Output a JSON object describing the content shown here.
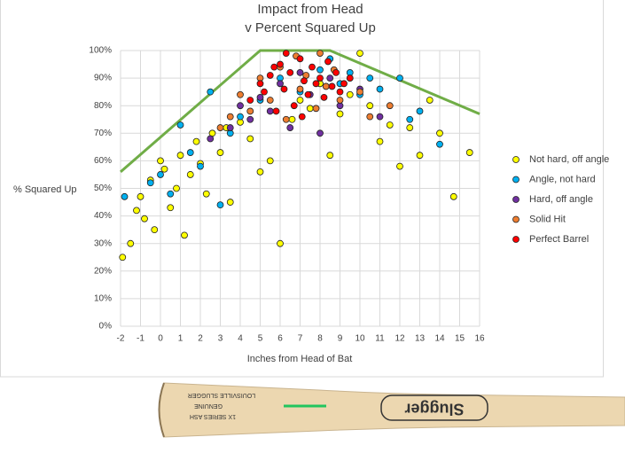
{
  "chart_data": {
    "type": "scatter",
    "title": "Impact from Head",
    "subtitle": "v Percent Squared Up",
    "x_label": "Inches from Head of Bat",
    "y_label": "% Squared Up",
    "xlim": [
      -2,
      16
    ],
    "ylim": [
      0,
      100
    ],
    "xticks": [
      -2,
      -1,
      0,
      1,
      2,
      3,
      4,
      5,
      6,
      7,
      8,
      9,
      10,
      11,
      12,
      13,
      14,
      15,
      16
    ],
    "yticks": [
      {
        "value": 0,
        "label": "0%"
      },
      {
        "value": 10,
        "label": "10%"
      },
      {
        "value": 20,
        "label": "20%"
      },
      {
        "value": 30,
        "label": "30%"
      },
      {
        "value": 40,
        "label": "40%"
      },
      {
        "value": 50,
        "label": "50%"
      },
      {
        "value": 60,
        "label": "60%"
      },
      {
        "value": 70,
        "label": "70%"
      },
      {
        "value": 80,
        "label": "80%"
      },
      {
        "value": 90,
        "label": "90%"
      },
      {
        "value": 100,
        "label": "100%"
      }
    ],
    "grid": true,
    "legend": "right",
    "envelope": {
      "color": "#70ad47",
      "x": [
        -2,
        5,
        8.5,
        16
      ],
      "y": [
        56,
        100,
        100,
        77
      ]
    },
    "series": [
      {
        "name": "Not hard, off angle",
        "color": "#ffff00",
        "x": [
          -1.9,
          -1.5,
          -1.2,
          -1,
          -0.8,
          -0.5,
          -0.3,
          0,
          0.2,
          0.5,
          0.8,
          1,
          1.2,
          1.5,
          1.8,
          2,
          2.3,
          2.6,
          3,
          3.3,
          3.5,
          4,
          4.5,
          5,
          5.5,
          6,
          6.6,
          7,
          7.5,
          8,
          8.5,
          9,
          9.5,
          10,
          10.5,
          11,
          11.5,
          12,
          12.5,
          13,
          13.5,
          14,
          14.7,
          15.5
        ],
        "values": [
          25,
          30,
          42,
          47,
          39,
          53,
          35,
          60,
          57,
          43,
          50,
          62,
          33,
          55,
          67,
          59,
          48,
          70,
          63,
          72,
          45,
          74,
          68,
          56,
          60,
          30,
          75,
          82,
          79,
          88,
          62,
          77,
          84,
          99,
          80,
          67,
          73,
          58,
          72,
          62,
          82,
          70,
          47,
          63
        ]
      },
      {
        "name": "Angle, not hard",
        "color": "#00b0f0",
        "x": [
          -1.8,
          -0.5,
          0,
          0.5,
          1,
          1.5,
          2,
          2.5,
          3,
          3.5,
          4,
          5,
          6,
          7,
          8,
          8.5,
          9,
          9.5,
          10,
          10.5,
          11,
          12,
          12.5,
          13,
          14
        ],
        "values": [
          47,
          52,
          55,
          48,
          73,
          63,
          58,
          85,
          44,
          70,
          76,
          82,
          90,
          85,
          93,
          97,
          88,
          92,
          84,
          90,
          86,
          90,
          75,
          78,
          66
        ]
      },
      {
        "name": "Hard, off angle",
        "color": "#7030a0",
        "x": [
          2.5,
          3.5,
          4,
          4.5,
          5,
          5.5,
          6,
          6.5,
          7,
          7.5,
          8,
          8.5,
          9,
          10,
          11
        ],
        "values": [
          68,
          72,
          80,
          75,
          83,
          78,
          88,
          72,
          92,
          84,
          70,
          90,
          80,
          86,
          76
        ]
      },
      {
        "name": "Solid Hit",
        "color": "#ed7d31",
        "x": [
          3,
          3.5,
          4,
          4.5,
          5,
          5.5,
          6,
          6.3,
          6.8,
          7,
          7.3,
          7.8,
          8,
          8.3,
          8.7,
          9,
          9.5,
          10,
          10.5,
          11.5
        ],
        "values": [
          72,
          76,
          84,
          78,
          90,
          82,
          94,
          75,
          98,
          86,
          91,
          79,
          99,
          87,
          93,
          82,
          90,
          85,
          76,
          80
        ]
      },
      {
        "name": "Perfect Barrel",
        "color": "#ff0000",
        "x": [
          4.5,
          5,
          5.2,
          5.5,
          5.8,
          6,
          6.2,
          6.5,
          6.7,
          7,
          7.2,
          7.4,
          7.6,
          7.8,
          8,
          8.2,
          8.4,
          8.6,
          8.8,
          9,
          9.2,
          9.5,
          6.3,
          7.1,
          5.7
        ],
        "values": [
          82,
          88,
          85,
          91,
          78,
          95,
          86,
          92,
          80,
          97,
          89,
          84,
          94,
          88,
          90,
          83,
          96,
          87,
          92,
          85,
          88,
          90,
          99,
          76,
          94
        ]
      }
    ]
  },
  "bat": {
    "brand": "Slugger",
    "maker": "LOUISVILLE SLUGGER",
    "model": "GENUINE",
    "series": "1X SERIES ASH"
  }
}
